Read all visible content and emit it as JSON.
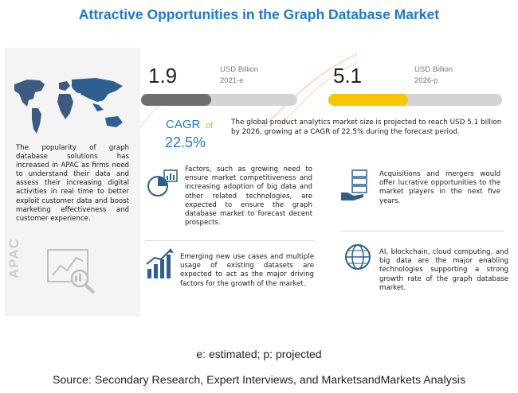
{
  "title": "Attractive Opportunities in the Graph Database Market",
  "metrics": {
    "start": {
      "value": "1.9",
      "unit": "USD Billion",
      "year": "2021-e",
      "fill_fraction": 0.45,
      "color": "#6e6e6e"
    },
    "end": {
      "value": "5.1",
      "unit": "USD Billion",
      "year": "2026-p",
      "fill_fraction": 0.46,
      "color": "#f7c600"
    }
  },
  "cagr": {
    "label": "CAGR",
    "of": "of",
    "value": "22.5%"
  },
  "summary": "The global product analytics market size is projected to reach USD 5.1 billion by 2026, growing at a CAGR of 22.5% during the forecast period.",
  "apac": {
    "label": "APAC",
    "description": "The popularity of graph database solutions has increased in APAC as firms need to understand their data and assess their increasing digital activities in real time to better exploit customer data and boost marketing effectiveness and customer experience."
  },
  "factors": [
    {
      "icon": "pie-chart-icon",
      "text": "Factors, such as growing need to ensure market competitiveness and increasing adoption of big data and other related technologies, are expected to ensure the graph database market to forecast decent prospects."
    },
    {
      "icon": "growth-chart-icon",
      "text": "Emerging new use cases and multiple usage of existing datasets are expected to act as the major driving factors for the growth of the market."
    },
    {
      "icon": "money-hand-icon",
      "text": "Acquisitions and mergers would offer lucrative opportunities to the market players in the next five years."
    },
    {
      "icon": "globe-icon",
      "text": "AI, blockchain, cloud computing, and big data are the major enabling technologies supporting a strong growth rate of the graph database market."
    }
  ],
  "footnote": "e: estimated; p: projected",
  "source": "Source: Secondary Research, Expert Interviews, and MarketsandMarkets Analysis",
  "colors": {
    "title": "#1e7ac8",
    "accent_yellow": "#f7c600",
    "gray_bar": "#6e6e6e"
  }
}
